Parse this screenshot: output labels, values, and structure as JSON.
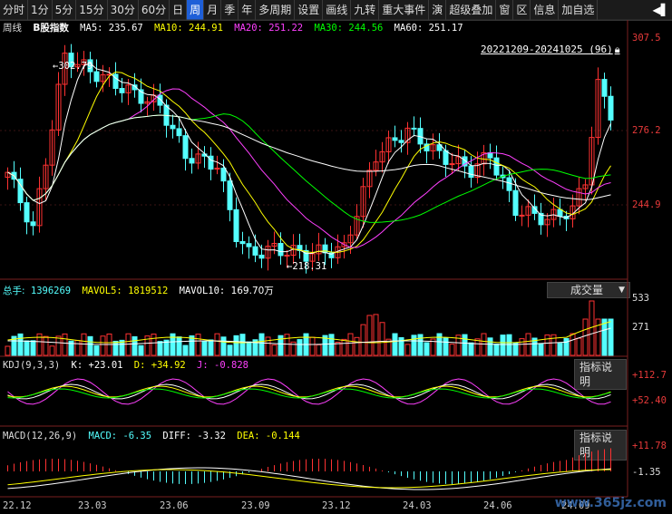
{
  "toolbar": {
    "items": [
      "分时",
      "1分",
      "5分",
      "15分",
      "30分",
      "60分",
      "日",
      "周",
      "月",
      "季",
      "年",
      "多周期",
      "设置",
      "画线",
      "九转",
      "重大事件",
      "演",
      "超级叠加",
      "窗",
      "区",
      "信息",
      "加自选"
    ],
    "active_index": 7,
    "arrow_glyph": "◀▌"
  },
  "main_info": {
    "period": "周线",
    "stock": "B股指数",
    "ma5_label": "MA5:",
    "ma5": "235.67",
    "ma10_label": "MA10:",
    "ma10": "244.91",
    "ma20_label": "MA20:",
    "ma20": "251.22",
    "ma30_label": "MA30:",
    "ma30": "244.56",
    "ma60_label": "MA60:",
    "ma60": "251.17",
    "range": "20221209-20241025 (96)",
    "high_mark": "302.79",
    "low_mark": "218.31"
  },
  "vol_info": {
    "total_label": "总手:",
    "total": "1396269",
    "mavol5_label": "MAVOL5:",
    "mavol5": "1819512",
    "mavol10_label": "MAVOL10:",
    "mavol10": "169.70万",
    "button": "成交量"
  },
  "kdj_info": {
    "name": "KDJ(9,3,3)",
    "k_label": "K:",
    "k": "+23.01",
    "d_label": "D:",
    "d": "+34.92",
    "j_label": "J:",
    "j": "-0.828",
    "button": "指标说明"
  },
  "macd_info": {
    "name": "MACD(12,26,9)",
    "macd_label": "MACD:",
    "macd": "-6.35",
    "diff_label": "DIFF:",
    "diff": "-3.32",
    "dea_label": "DEA:",
    "dea": "-0.144",
    "button": "指标说明"
  },
  "axes": {
    "price_ticks": [
      "307.5",
      "276.2",
      "244.9"
    ],
    "vol_ticks": [
      "533",
      "271"
    ],
    "kdj_ticks": [
      "+112.7",
      "+52.40"
    ],
    "macd_ticks": [
      "+11.78",
      "-1.35"
    ],
    "x_labels": [
      "22.12",
      "23.03",
      "23.06",
      "23.09",
      "23.12",
      "24.03",
      "24.06",
      "24.09"
    ]
  },
  "colors": {
    "up": "#ff3232",
    "down": "#54ffff",
    "ma5": "#ffffff",
    "ma10": "#ffff00",
    "ma20": "#ff40ff",
    "ma30": "#00ff00",
    "ma60": "#ffffff",
    "axis_red": "#e83a3a"
  },
  "watermark": "www.365jz.com"
}
